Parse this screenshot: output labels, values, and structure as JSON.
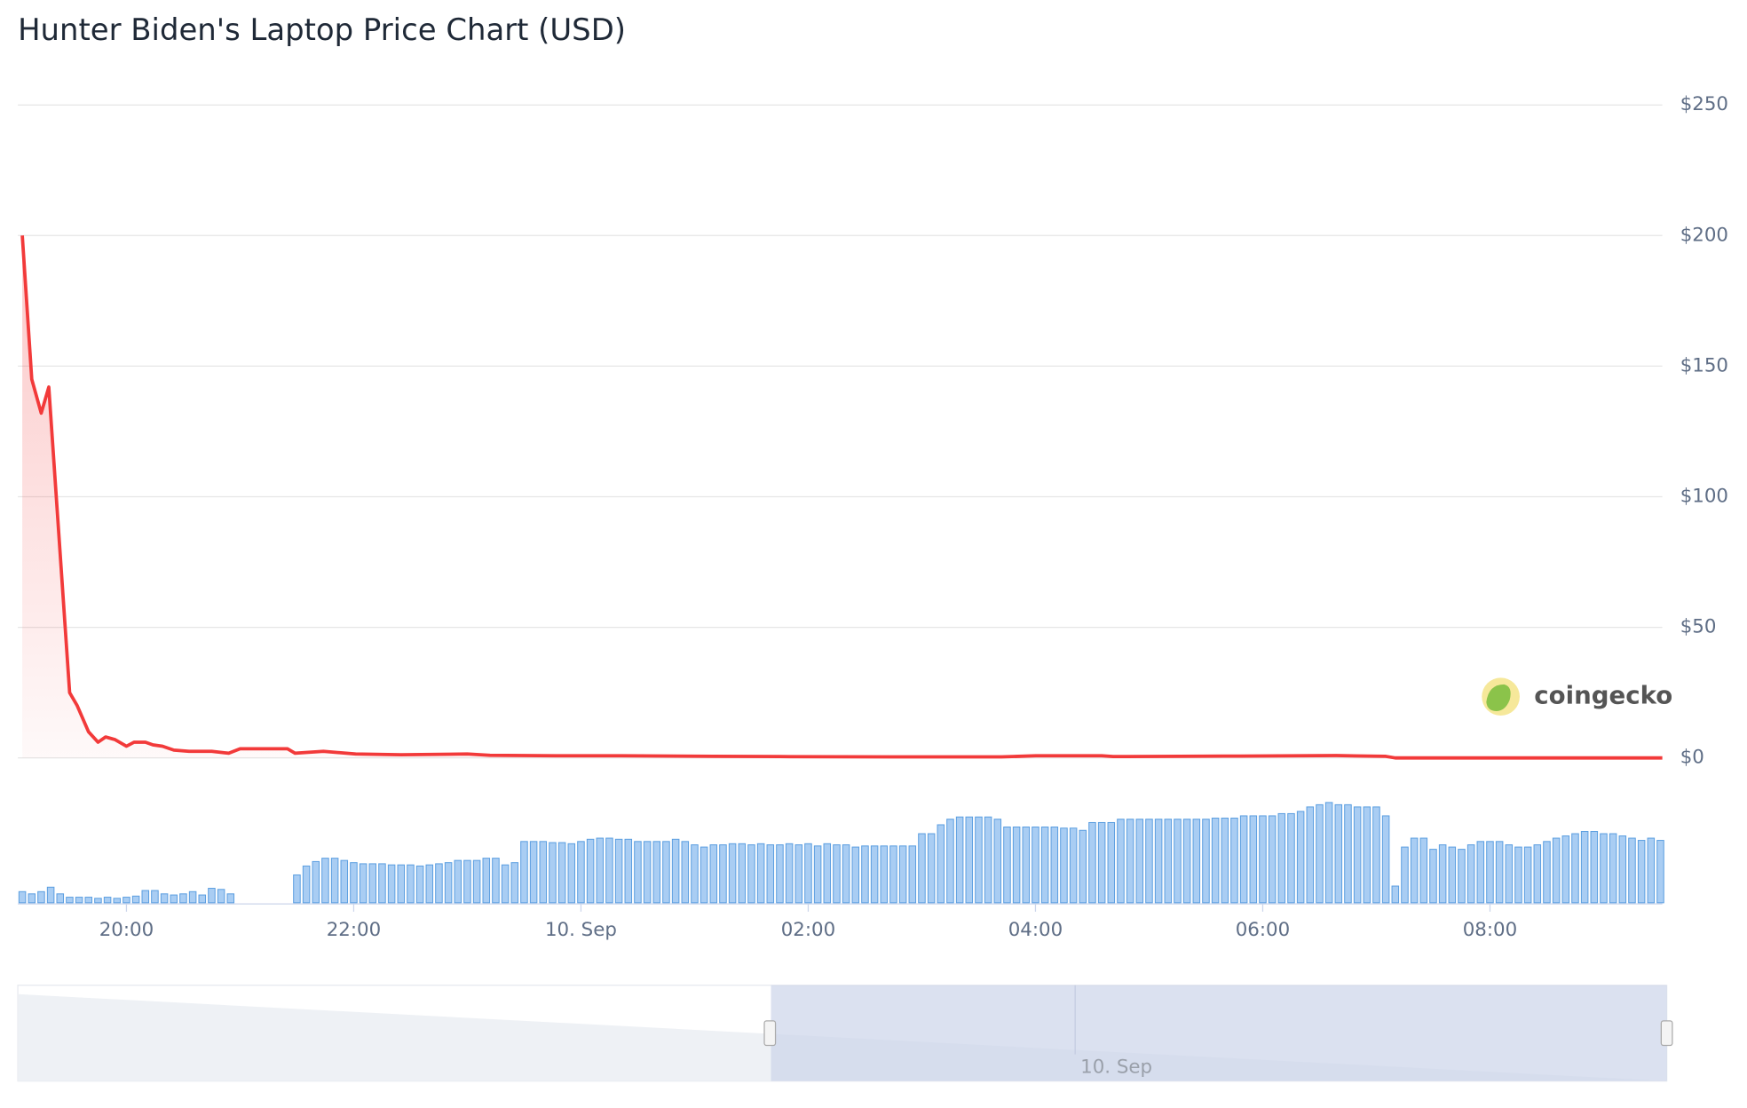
{
  "chart_data": [
    {
      "type": "line",
      "title": "Hunter Biden's Laptop Price Chart (USD)",
      "color": "#f23a3a",
      "x": [
        -295,
        -290,
        -285,
        -281,
        -270,
        -266,
        -260,
        -255,
        -251,
        -246,
        -240,
        -236,
        -230,
        -226,
        -221,
        -215,
        -207,
        -195,
        -186,
        -180,
        -155,
        -151,
        -136,
        -119,
        -95,
        -60,
        -48,
        -13,
        22,
        70,
        105,
        164,
        222,
        240,
        275,
        281,
        316,
        340,
        399,
        425,
        430,
        571
      ],
      "values": [
        200,
        145,
        132,
        142,
        25,
        20,
        10,
        6,
        8,
        7,
        4.5,
        6,
        6,
        5,
        4.5,
        3,
        2.5,
        2.5,
        1.8,
        3.5,
        3.5,
        1.8,
        2.5,
        1.5,
        1.2,
        1.5,
        1,
        0.8,
        0.8,
        0.6,
        0.5,
        0.4,
        0.4,
        0.8,
        0.8,
        0.5,
        0.6,
        0.7,
        0.9,
        0.6,
        0,
        0
      ],
      "xlim": [
        -295,
        571
      ],
      "ylim": [
        0,
        250
      ],
      "yticks": [
        {
          "value": 0,
          "label": "$0"
        },
        {
          "value": 50,
          "label": "$50"
        },
        {
          "value": 100,
          "label": "$100"
        },
        {
          "value": 150,
          "label": "$150"
        },
        {
          "value": 200,
          "label": "$200"
        },
        {
          "value": 250,
          "label": "$250"
        }
      ],
      "grid": true,
      "watermark": "coingecko"
    },
    {
      "type": "bar",
      "color": "#a9cdf3",
      "x": [
        -295,
        -290,
        -285,
        -280,
        -275,
        -270,
        -265,
        -260,
        -255,
        -250,
        -245,
        -240,
        -235,
        -230,
        -225,
        -220,
        -215,
        -210,
        -205,
        -200,
        -195,
        -190,
        -185,
        -150,
        -145,
        -140,
        -135,
        -130,
        -125,
        -120,
        -115,
        -110,
        -105,
        -100,
        -95,
        -90,
        -85,
        -80,
        -75,
        -70,
        -65,
        -60,
        -55,
        -50,
        -45,
        -40,
        -35,
        -30,
        -25,
        -20,
        -15,
        -10,
        -5,
        0,
        5,
        10,
        15,
        20,
        25,
        30,
        35,
        40,
        45,
        50,
        55,
        60,
        65,
        70,
        75,
        80,
        85,
        90,
        95,
        100,
        105,
        110,
        115,
        120,
        125,
        130,
        135,
        140,
        145,
        150,
        155,
        160,
        165,
        170,
        175,
        180,
        185,
        190,
        195,
        200,
        205,
        210,
        215,
        220,
        225,
        230,
        235,
        240,
        245,
        250,
        255,
        260,
        265,
        270,
        275,
        280,
        285,
        290,
        295,
        300,
        305,
        310,
        315,
        320,
        325,
        330,
        335,
        340,
        345,
        350,
        355,
        360,
        365,
        370,
        375,
        380,
        385,
        390,
        395,
        400,
        405,
        410,
        415,
        420,
        425,
        430,
        435,
        440,
        445,
        450,
        455,
        460,
        465,
        470,
        475,
        480,
        485,
        490,
        495,
        500,
        505,
        510,
        515,
        520,
        525,
        530,
        535,
        540,
        545,
        550,
        555,
        560,
        565,
        570
      ],
      "values": [
        10,
        8,
        10,
        14,
        8,
        5,
        5,
        5,
        4,
        5,
        4,
        5,
        6,
        11,
        11,
        8,
        7,
        8,
        10,
        7,
        13,
        12,
        8,
        25,
        33,
        37,
        40,
        40,
        38,
        36,
        35,
        35,
        35,
        34,
        34,
        34,
        33,
        34,
        35,
        36,
        38,
        38,
        38,
        40,
        40,
        34,
        36,
        55,
        55,
        55,
        54,
        54,
        53,
        55,
        57,
        58,
        58,
        57,
        57,
        55,
        55,
        55,
        55,
        57,
        55,
        52,
        50,
        52,
        52,
        53,
        53,
        52,
        53,
        52,
        52,
        53,
        52,
        53,
        51,
        53,
        52,
        52,
        50,
        51,
        51,
        51,
        51,
        51,
        51,
        62,
        62,
        70,
        75,
        77,
        77,
        77,
        77,
        75,
        68,
        68,
        68,
        68,
        68,
        68,
        67,
        67,
        65,
        72,
        72,
        72,
        75,
        75,
        75,
        75,
        75,
        75,
        75,
        75,
        75,
        75,
        76,
        76,
        76,
        78,
        78,
        78,
        78,
        80,
        80,
        82,
        86,
        88,
        90,
        88,
        88,
        86,
        86,
        86,
        78,
        15,
        50,
        58,
        58,
        48,
        52,
        50,
        48,
        52,
        55,
        55,
        55,
        52,
        50,
        50,
        52,
        55,
        58,
        60,
        62,
        64,
        64,
        62,
        62,
        60,
        58,
        56,
        58,
        56
      ],
      "xlim": [
        -295,
        571
      ],
      "ylim": [
        0,
        100
      ],
      "xticks": [
        {
          "value": -240,
          "label": "20:00"
        },
        {
          "value": -120,
          "label": "22:00"
        },
        {
          "value": 0,
          "label": "10. Sep"
        },
        {
          "value": 120,
          "label": "02:00"
        },
        {
          "value": 240,
          "label": "04:00"
        },
        {
          "value": 360,
          "label": "06:00"
        },
        {
          "value": 480,
          "label": "08:00"
        }
      ],
      "navigator_label": "10. Sep"
    }
  ]
}
